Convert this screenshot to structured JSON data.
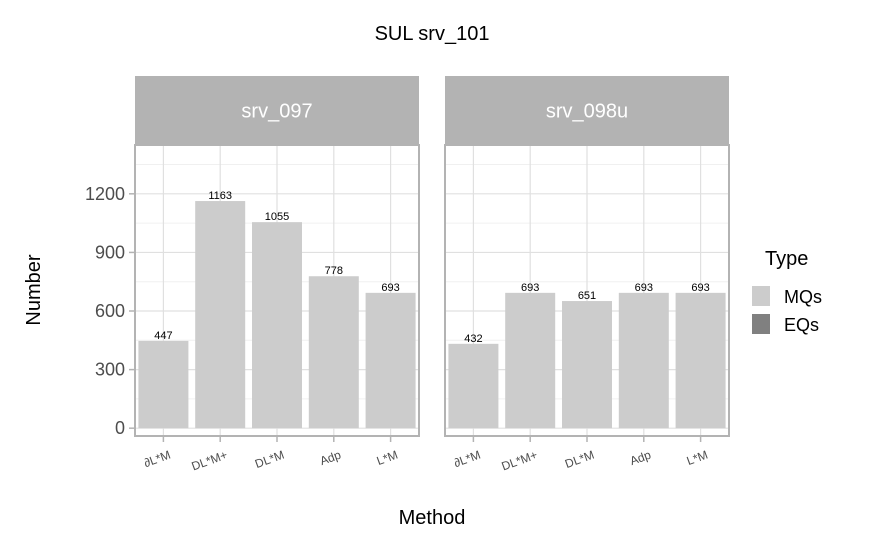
{
  "chart_data": {
    "type": "bar",
    "title": "SUL  srv_101",
    "xlabel": "Method",
    "ylabel": "Number",
    "ylim": [
      -40,
      1450
    ],
    "yticks": [
      0,
      300,
      600,
      900,
      1200
    ],
    "grid": true,
    "legend": {
      "title": "Type",
      "placement": "right",
      "entries": [
        {
          "label": "MQs",
          "color": "#cccccc"
        },
        {
          "label": "EQs",
          "color": "#808080"
        }
      ]
    },
    "categories": [
      "∂L*M",
      "DL*M+",
      "DL*M",
      "Adp",
      "L*M"
    ],
    "facets": [
      {
        "name": "srv_097",
        "series": [
          {
            "name": "MQs",
            "values": [
              447,
              1163,
              1055,
              778,
              693
            ]
          },
          {
            "name": "EQs",
            "values": [
              0,
              0,
              0,
              0,
              0
            ]
          }
        ],
        "labels": [
          447,
          1163,
          1055,
          778,
          693
        ]
      },
      {
        "name": "srv_098u",
        "series": [
          {
            "name": "MQs",
            "values": [
              432,
              693,
              651,
              693,
              693
            ]
          },
          {
            "name": "EQs",
            "values": [
              0,
              0,
              0,
              0,
              0
            ]
          }
        ],
        "labels": [
          432,
          693,
          651,
          693,
          693
        ]
      }
    ]
  }
}
